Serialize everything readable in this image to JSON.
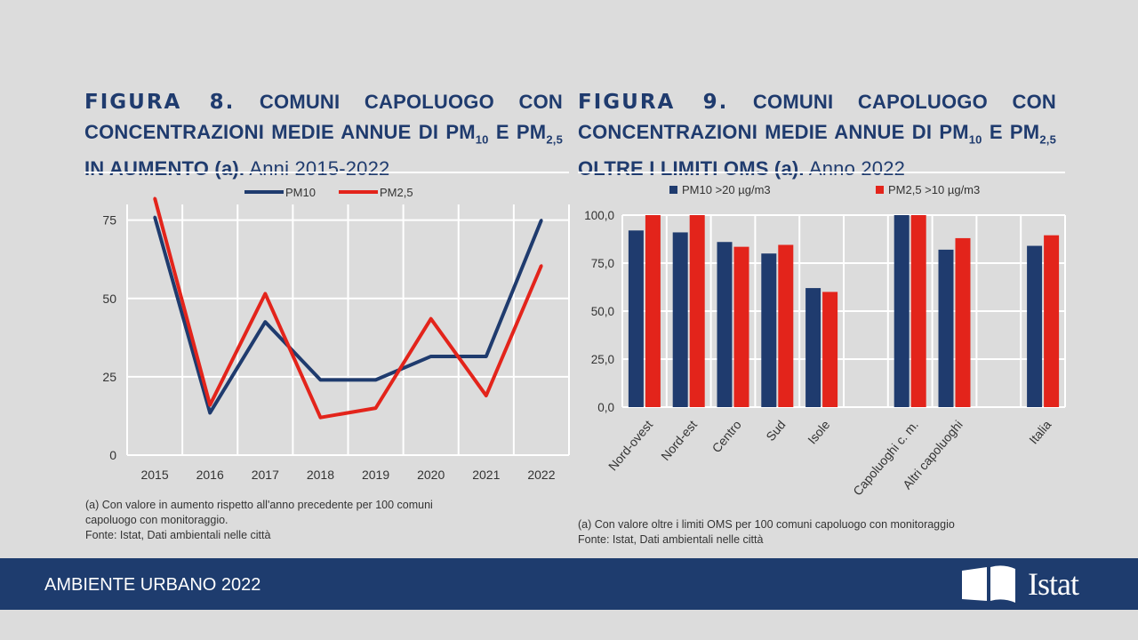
{
  "figure8": {
    "label": "FIGURA 8.",
    "title": "COMUNI CAPOLUOGO CON CONCENTRAZIONI MEDIE ANNUE DI PM",
    "sub10": "10",
    "mid": " E PM",
    "sub25": "2,5",
    "title_end": " IN AUMENTO (a).",
    "years": " Anni 2015-2022",
    "note": "(a) Con valore in aumento rispetto all'anno precedente per 100 comuni capoluogo con monitoraggio.",
    "source": "Fonte: Istat, Dati ambientali nelle città"
  },
  "figure9": {
    "label": "FIGURA 9.",
    "title": "COMUNI CAPOLUOGO CON CONCENTRAZIONI MEDIE ANNUE DI PM",
    "sub10": "10",
    "mid": " E PM",
    "sub25": "2,5",
    "title_end": " OLTRE I LIMITI OMS (a).",
    "years": " Anno 2022",
    "note": "(a) Con valore oltre i limiti OMS per 100 comuni capoluogo con monitoraggio",
    "source": "Fonte: Istat, Dati ambientali nelle città"
  },
  "footer": {
    "section": "AMBIENTE URBANO 2022",
    "brand": "Istat"
  },
  "colors": {
    "pm10": "#1f3b6e",
    "pm25": "#e3241b",
    "title": "#1f3b6e",
    "footer": "#1e3c6e"
  },
  "chart_data": [
    {
      "type": "line",
      "x": [
        "2015",
        "2016",
        "2017",
        "2018",
        "2019",
        "2020",
        "2021",
        "2022"
      ],
      "series": [
        {
          "name": "PM10",
          "values": [
            76,
            13.5,
            42.5,
            24,
            24,
            31.5,
            31.5,
            75
          ],
          "color": "#1f3b6e"
        },
        {
          "name": "PM2,5",
          "values": [
            82,
            16,
            51.5,
            12,
            15,
            43.5,
            19,
            60.5
          ],
          "color": "#e3241b"
        }
      ],
      "ylim": [
        0,
        80
      ],
      "yticks": [
        "0",
        "25",
        "50",
        "75"
      ],
      "grid": true,
      "legend": "top-center"
    },
    {
      "type": "bar",
      "categories": [
        "Nord-ovest",
        "Nord-est",
        "Centro",
        "Sud",
        "Isole",
        "",
        "Capoluoghi c. m.",
        "Altri capoluoghi",
        "",
        "Italia"
      ],
      "series": [
        {
          "name": "PM10 >20 µg/m3",
          "values": [
            92,
            91,
            86,
            80,
            62,
            null,
            100,
            82,
            null,
            84
          ],
          "color": "#1f3b6e"
        },
        {
          "name": "PM2,5 >10 µg/m3",
          "values": [
            100,
            100,
            83.5,
            84.5,
            60,
            null,
            100,
            88,
            null,
            89.5
          ],
          "color": "#e3241b"
        }
      ],
      "ylim": [
        0,
        100
      ],
      "yticks": [
        "0,0",
        "25,0",
        "50,0",
        "75,0",
        "100,0"
      ],
      "grid": true,
      "legend": "top-center"
    }
  ]
}
